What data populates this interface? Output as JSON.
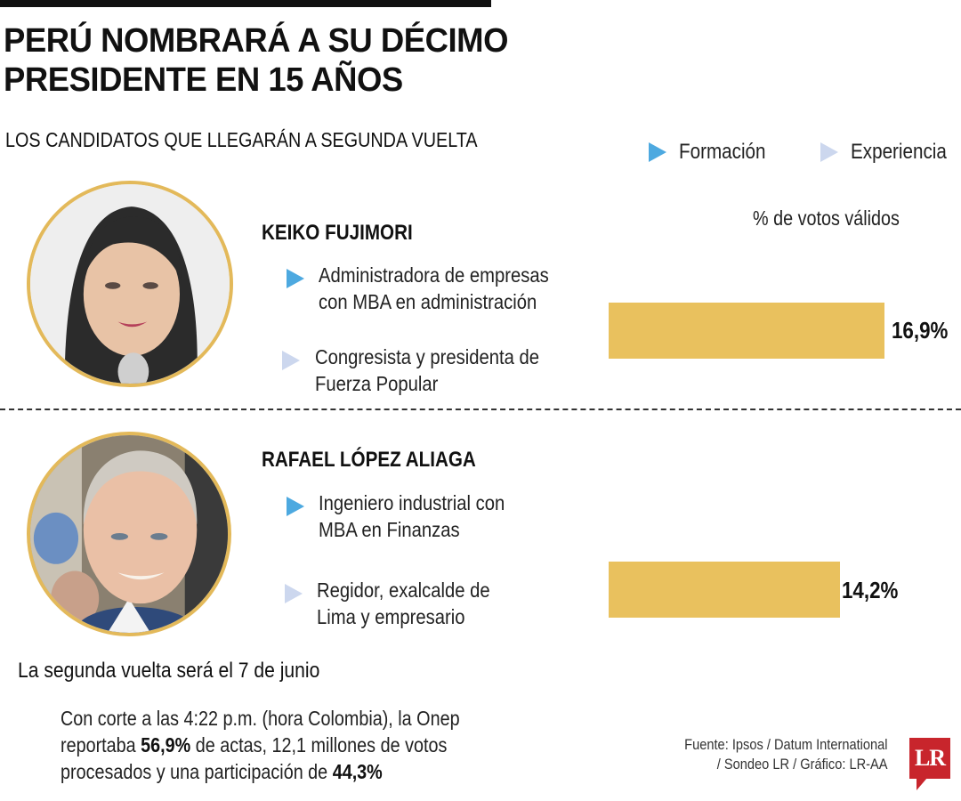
{
  "header": {
    "title_line1": "PERÚ NOMBRARÁ A SU DÉCIMO",
    "title_line2": "PRESIDENTE EN 15 AÑOS",
    "subtitle": "LOS CANDIDATOS QUE LLEGARÁN A SEGUNDA VUELTA"
  },
  "legend": {
    "items": [
      {
        "label": "Formación",
        "color": "#4DA9E0",
        "icon": "triangle-right-icon"
      },
      {
        "label": "Experiencia",
        "color": "#CCD7EE",
        "icon": "triangle-right-icon"
      }
    ]
  },
  "axis_label": "% de votos válidos",
  "candidates": [
    {
      "name": "KEIKO FUJIMORI",
      "formacion": [
        "Administradora de empresas",
        "con MBA en administración"
      ],
      "experiencia": [
        "Congresista y presidenta de",
        "Fuerza Popular"
      ],
      "vote_label": "16,9%",
      "vote_value": 16.9
    },
    {
      "name": "RAFAEL LÓPEZ ALIAGA",
      "formacion": [
        "Ingeniero industrial con",
        "MBA en Finanzas"
      ],
      "experiencia": [
        "Regidor, exalcalde de",
        "Lima y empresario"
      ],
      "vote_label": "14,2%",
      "vote_value": 14.2
    }
  ],
  "footnote": {
    "title": "La segunda vuelta será el 7 de junio",
    "line1": "Con corte a las 4:22 p.m. (hora Colombia), la Onep",
    "line2_pre": "reportaba ",
    "line2_bold": "56,9%",
    "line2_post": " de actas, 12,1 millones de votos",
    "line3_pre": "procesados y una participación de ",
    "line3_bold": "44,3%"
  },
  "source": {
    "line1": "Fuente: Ipsos / Datum International",
    "line2": "/ Sondeo LR / Gráfico: LR-AA"
  },
  "logo": {
    "text": "LR",
    "color": "#C8252C"
  },
  "colors": {
    "bar": "#E9C15E",
    "photo_ring": "#E3B95A",
    "formacion": "#4DA9E0",
    "experiencia": "#CCD7EE"
  },
  "chart_data": {
    "type": "bar",
    "orientation": "horizontal",
    "title": "PERÚ NOMBRARÁ A SU DÉCIMO PRESIDENTE EN 15 AÑOS",
    "subtitle": "LOS CANDIDATOS QUE LLEGARÁN A SEGUNDA VUELTA",
    "categories": [
      "KEIKO FUJIMORI",
      "RAFAEL LÓPEZ ALIAGA"
    ],
    "values": [
      16.9,
      14.2
    ],
    "value_labels": [
      "16,9%",
      "14,2%"
    ],
    "xlabel": "% de votos válidos",
    "ylabel": "",
    "grid": false,
    "bar_color": "#E9C15E",
    "legend": [
      "Formación",
      "Experiencia"
    ],
    "legend_position": "top-right"
  }
}
